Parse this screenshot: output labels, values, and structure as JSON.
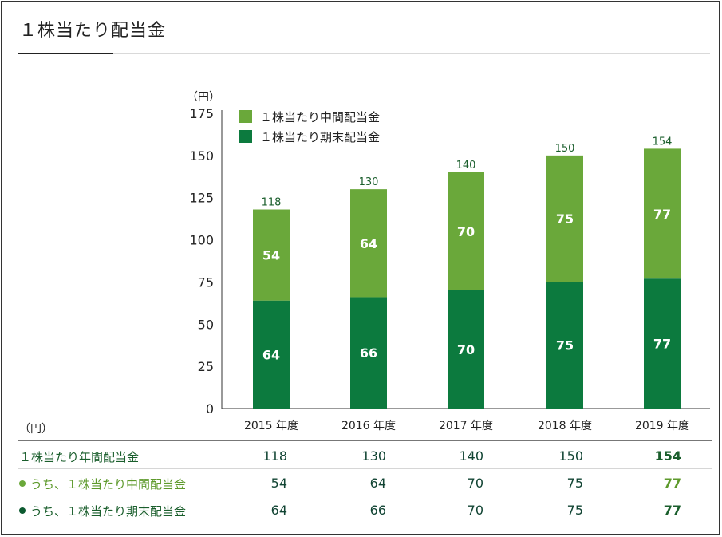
{
  "page": {
    "title": "１株当たり配当金"
  },
  "chart_data": {
    "type": "bar",
    "stacked": true,
    "unit_label": "（円）",
    "categories": [
      "2015 年度",
      "2016 年度",
      "2017 年度",
      "2018 年度",
      "2019 年度"
    ],
    "series": [
      {
        "name": "１株当たり期末配当金",
        "color": "#0c7a3e",
        "values": [
          64,
          66,
          70,
          75,
          77
        ]
      },
      {
        "name": "１株当たり中間配当金",
        "color": "#6aa83a",
        "values": [
          54,
          64,
          70,
          75,
          77
        ]
      }
    ],
    "totals": [
      118,
      130,
      140,
      150,
      154
    ],
    "ylim": [
      0,
      175
    ],
    "yticks": [
      0,
      25,
      50,
      75,
      100,
      125,
      150,
      175
    ],
    "legend_order": [
      "１株当たり中間配当金",
      "１株当たり期末配当金"
    ],
    "legend_position": "top-left",
    "grid": false
  },
  "table": {
    "unit_label": "（円）",
    "rows": [
      {
        "label": "１株当たり年間配当金",
        "color": "#1a5e2c",
        "dot": "",
        "values": [
          "118",
          "130",
          "140",
          "150",
          "154"
        ]
      },
      {
        "label": "うち、１株当たり中間配当金",
        "color": "#5e9a2c",
        "dot": "#6aa83a",
        "values": [
          "54",
          "64",
          "70",
          "75",
          "77"
        ]
      },
      {
        "label": "うち、１株当たり期末配当金",
        "color": "#1a5e2c",
        "dot": "#0c5a30",
        "values": [
          "64",
          "66",
          "70",
          "75",
          "77"
        ]
      }
    ]
  }
}
